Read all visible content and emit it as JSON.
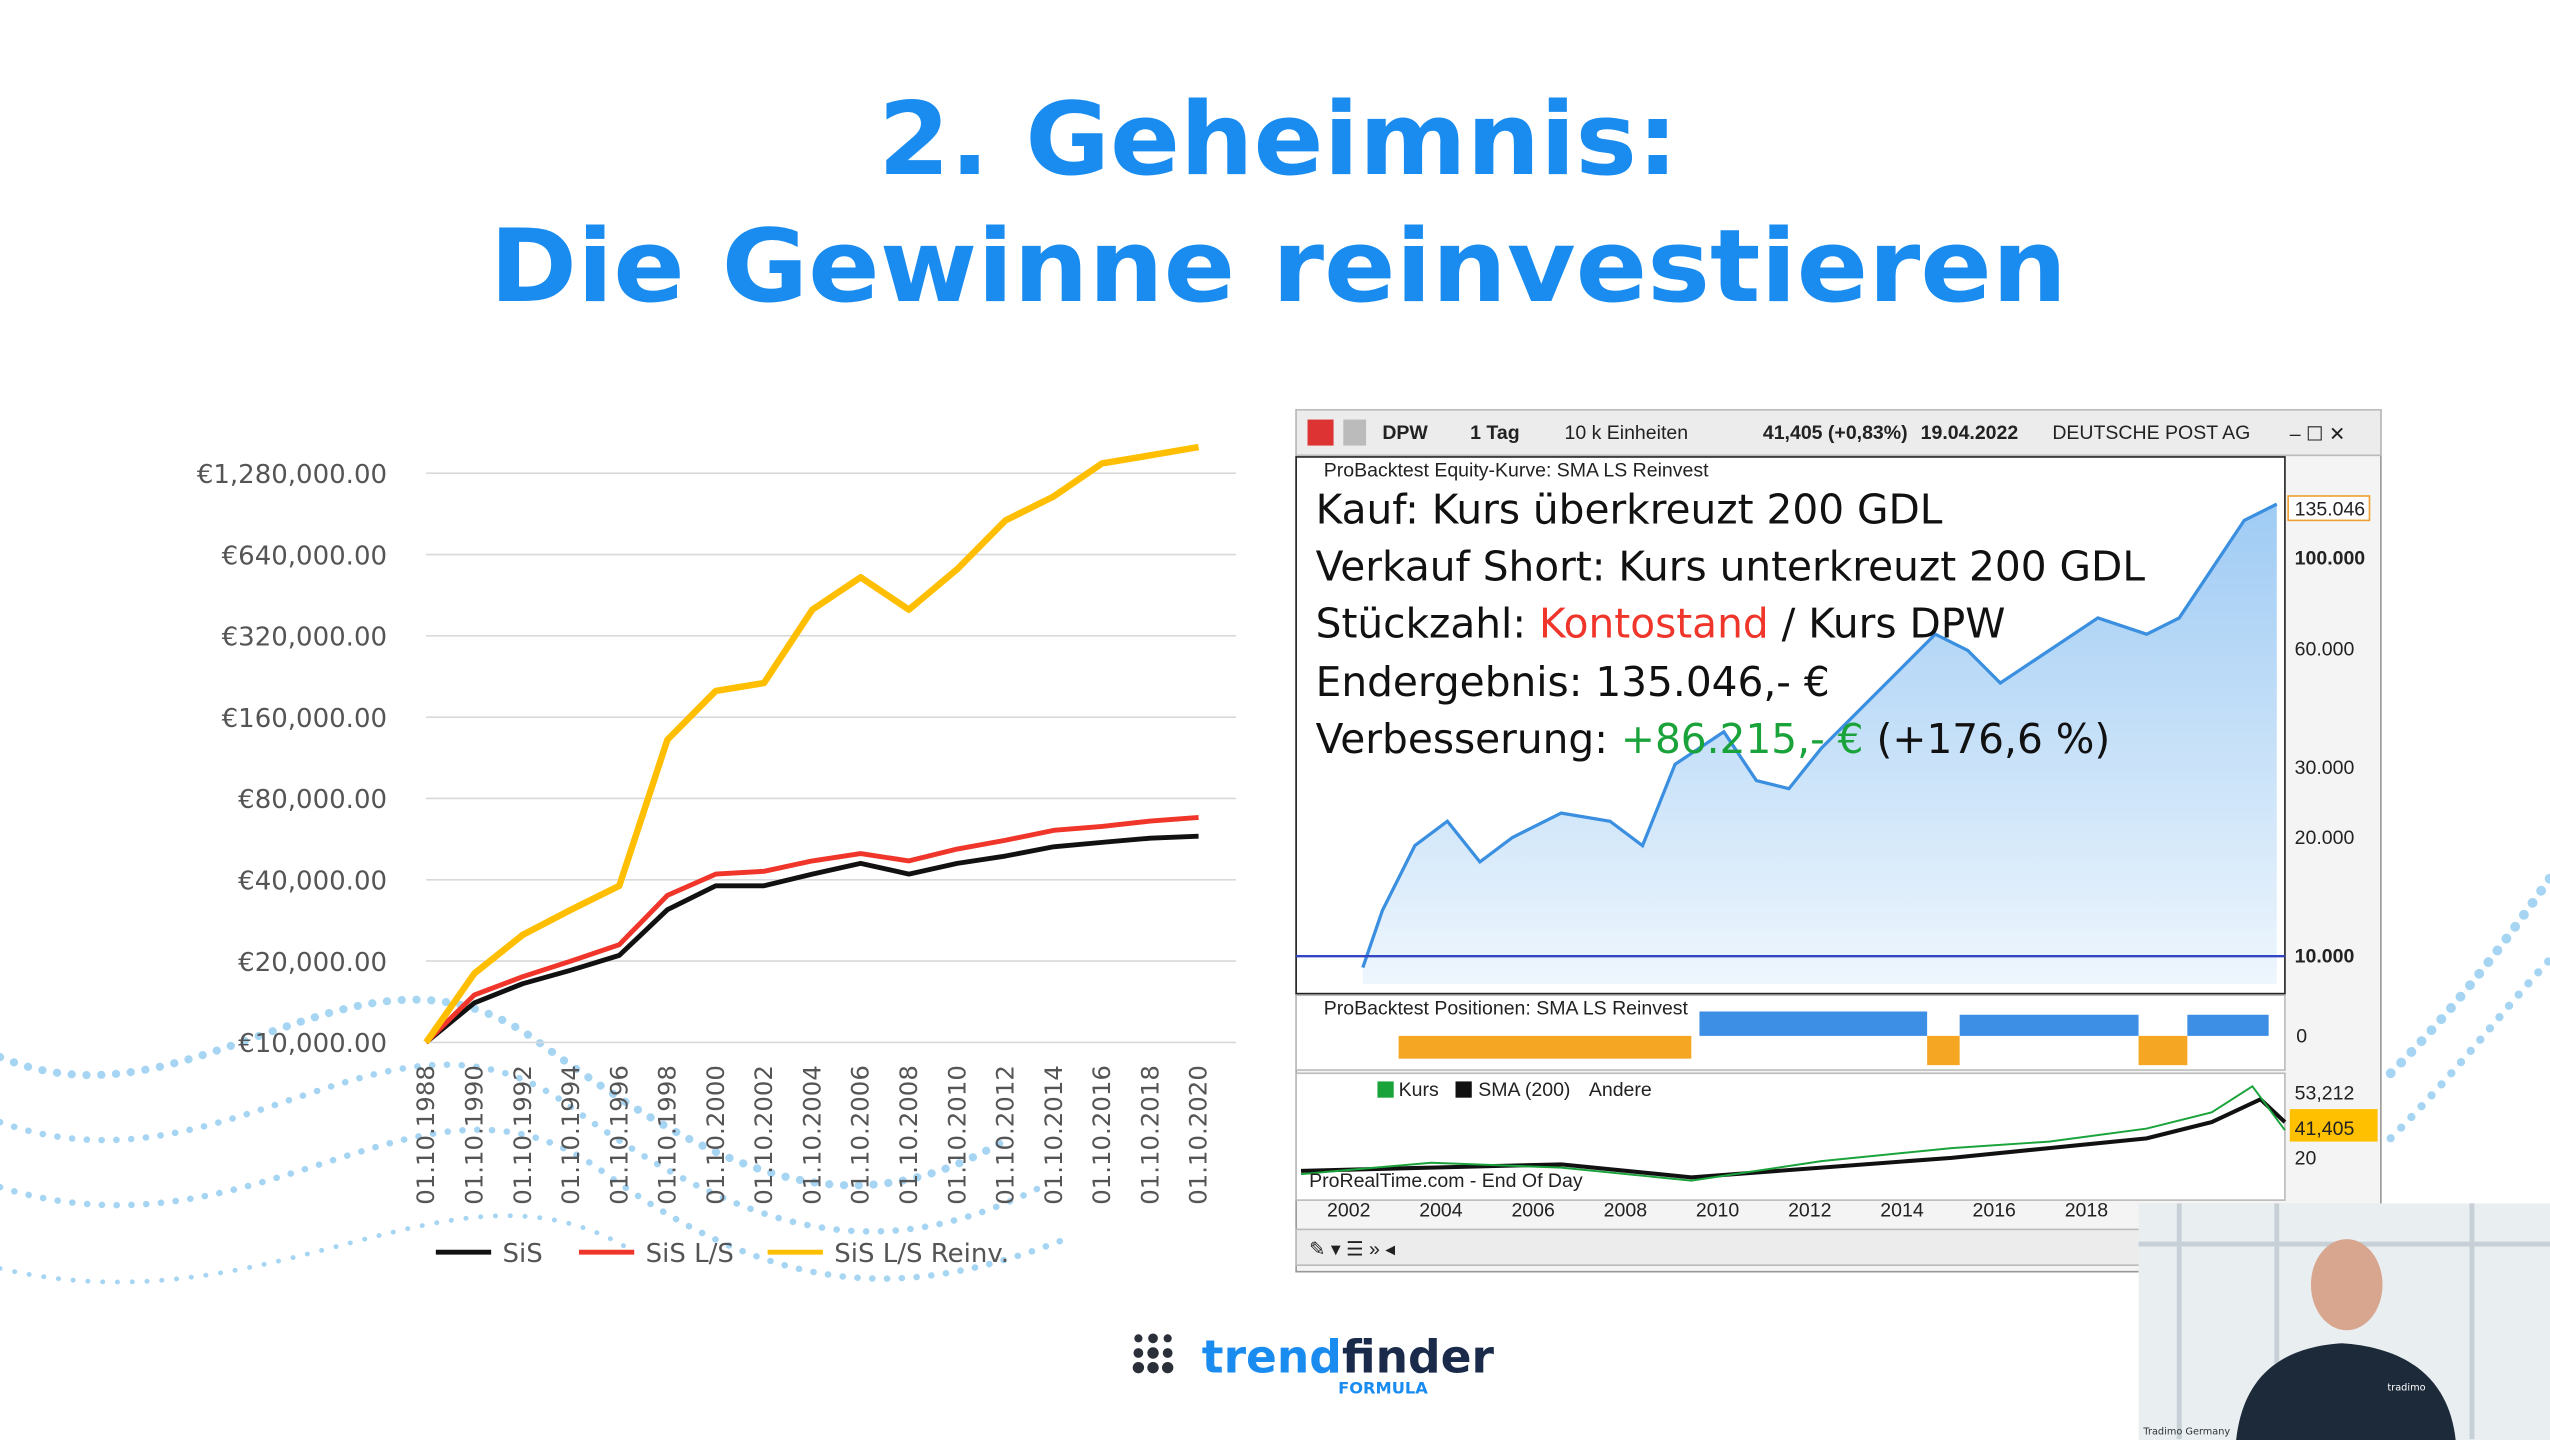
{
  "slide": {
    "title_line1": "2. Geheimnis:",
    "title_line2": "Die Gewinne reinvestieren"
  },
  "chart_data": {
    "type": "line",
    "categories": [
      "01.10.1988",
      "01.10.1990",
      "01.10.1992",
      "01.10.1994",
      "01.10.1996",
      "01.10.1998",
      "01.10.2000",
      "01.10.2002",
      "01.10.2004",
      "01.10.2006",
      "01.10.2008",
      "01.10.2010",
      "01.10.2012",
      "01.10.2014",
      "01.10.2016",
      "01.10.2018",
      "01.10.2020"
    ],
    "series": [
      {
        "name": "SiS",
        "color": "#111111",
        "values": [
          10000,
          14000,
          16500,
          18500,
          21000,
          31000,
          38000,
          38000,
          42000,
          46000,
          42000,
          46000,
          49000,
          53000,
          55000,
          57000,
          58000
        ]
      },
      {
        "name": "SiS L/S",
        "color": "#f0352a",
        "values": [
          10000,
          15000,
          17500,
          20000,
          23000,
          35000,
          42000,
          43000,
          47000,
          50000,
          47000,
          52000,
          56000,
          61000,
          63000,
          66000,
          68000
        ]
      },
      {
        "name": "SiS L/S Reinv.",
        "color": "#ffbf00",
        "values": [
          10000,
          18000,
          25000,
          31000,
          38000,
          132000,
          200000,
          214000,
          400000,
          527000,
          400000,
          565000,
          856000,
          1050000,
          1390000,
          1490000,
          1600000
        ]
      }
    ],
    "log_scale": true,
    "ylim": [
      10000,
      2000000
    ],
    "yticks": [
      {
        "value": 10000,
        "label": "€10,000.00"
      },
      {
        "value": 20000,
        "label": "€20,000.00"
      },
      {
        "value": 40000,
        "label": "€40,000.00"
      },
      {
        "value": 80000,
        "label": "€80,000.00"
      },
      {
        "value": 160000,
        "label": "€160,000.00"
      },
      {
        "value": 320000,
        "label": "€320,000.00"
      },
      {
        "value": 640000,
        "label": "€640,000.00"
      },
      {
        "value": 1280000,
        "label": "€1,280,000.00"
      }
    ],
    "grid": true,
    "legend": "bottom"
  },
  "platform": {
    "toolbar": {
      "symbol": "DPW",
      "interval": "1 Tag",
      "units": "10 k Einheiten",
      "quote": "41,405 (+0,83%)",
      "date": "19.04.2022",
      "name": "DEUTSCHE POST AG"
    },
    "equity_title": "ProBacktest Equity-Kurve: SMA LS Reinvest",
    "overlay": {
      "line1": "Kauf: Kurs überkreuzt 200 GDL",
      "line2": "Verkauf Short: Kurs unterkreuzt 200 GDL",
      "line3": [
        "Stückzahl:",
        "Kontostand",
        "/ Kurs DPW"
      ],
      "line4": "Endergebnis: 135.046,- €",
      "line5": [
        "Verbesserung:",
        "+86.215,- €",
        "(+176,6 %)"
      ]
    },
    "equity_axis": [
      "135.046",
      "100.000",
      "60.000",
      "30.000",
      "20.000",
      "10.000"
    ],
    "positions_title": "ProBacktest Positionen: SMA LS Reinvest",
    "positions_axis": "0",
    "price_legend": [
      "Kurs",
      "SMA (200)",
      "Andere"
    ],
    "price_axis": [
      "53,212",
      "41,405",
      "20"
    ],
    "watermark": "ProRealTime.com - End Of Day",
    "years": [
      "2002",
      "2004",
      "2006",
      "2008",
      "2010",
      "2012",
      "2014",
      "2016",
      "2018"
    ]
  },
  "logo": {
    "word1": "trend",
    "word2": "finder",
    "sub": "FORMULA"
  },
  "video": {
    "caption": "Tradimo Germany",
    "badge": "tradimo"
  }
}
